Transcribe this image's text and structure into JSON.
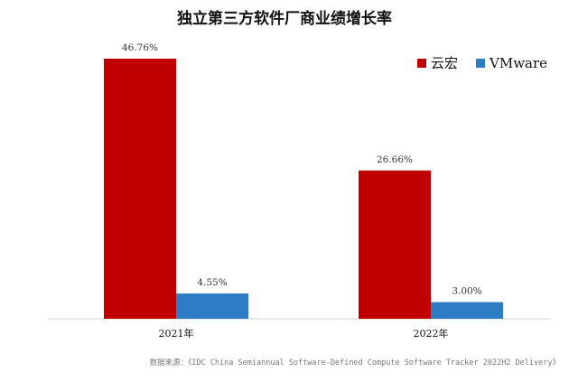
{
  "chart_data": {
    "type": "bar",
    "title": "独立第三方软件厂商业绩增长率",
    "categories": [
      "2021年",
      "2022年"
    ],
    "series": [
      {
        "name": "云宏",
        "color": "#C00000",
        "values": [
          46.76,
          26.66
        ],
        "labels": [
          "46.76%",
          "26.66%"
        ]
      },
      {
        "name": "VMware",
        "color": "#2E7DC4",
        "values": [
          4.55,
          3.0
        ],
        "labels": [
          "4.55%",
          "3.00%"
        ]
      }
    ],
    "ylim": [
      0,
      50
    ],
    "grid": false,
    "legend": "top-right"
  },
  "source": "数据来源：《IDC China Semiannual Software-Defined Compute Software Tracker 2022H2 Delivery》"
}
